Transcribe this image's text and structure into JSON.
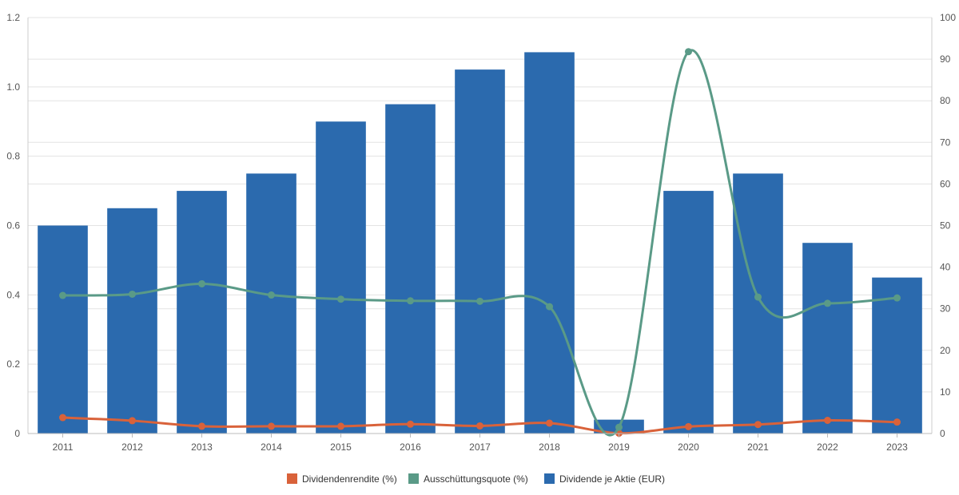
{
  "chart_data": {
    "type": "bar",
    "categories": [
      "2011",
      "2012",
      "2013",
      "2014",
      "2015",
      "2016",
      "2017",
      "2018",
      "2019",
      "2020",
      "2021",
      "2022",
      "2023"
    ],
    "y_left": {
      "ylim": [
        0,
        1.2
      ],
      "ticks": [
        "0",
        "0.2",
        "0.4",
        "0.6",
        "0.8",
        "1.0",
        "1.2"
      ]
    },
    "y_right": {
      "ylim": [
        0,
        100
      ],
      "ticks": [
        "0",
        "10",
        "20",
        "30",
        "40",
        "50",
        "60",
        "70",
        "80",
        "90",
        "100"
      ]
    },
    "grid": true,
    "legend_position": "bottom-center",
    "series": [
      {
        "name": "Dividendenrendite (%)",
        "type": "line",
        "axis": "left",
        "color": "#d9623a",
        "values": [
          0.046,
          0.037,
          0.021,
          0.021,
          0.021,
          0.027,
          0.022,
          0.03,
          0.001,
          0.02,
          0.026,
          0.038,
          0.033
        ]
      },
      {
        "name": "Ausschüttungsquote (%)",
        "type": "line",
        "axis": "right",
        "color": "#5a9a87",
        "values": [
          33.2,
          33.5,
          36.0,
          33.3,
          32.3,
          31.9,
          31.8,
          30.5,
          1.5,
          91.8,
          32.8,
          31.3,
          32.6
        ]
      },
      {
        "name": "Dividende je Aktie (EUR)",
        "type": "bar",
        "axis": "left",
        "color": "#2b6aae",
        "values": [
          0.6,
          0.65,
          0.7,
          0.75,
          0.9,
          0.95,
          1.05,
          1.1,
          0.04,
          0.7,
          0.75,
          0.55,
          0.45
        ]
      }
    ]
  }
}
